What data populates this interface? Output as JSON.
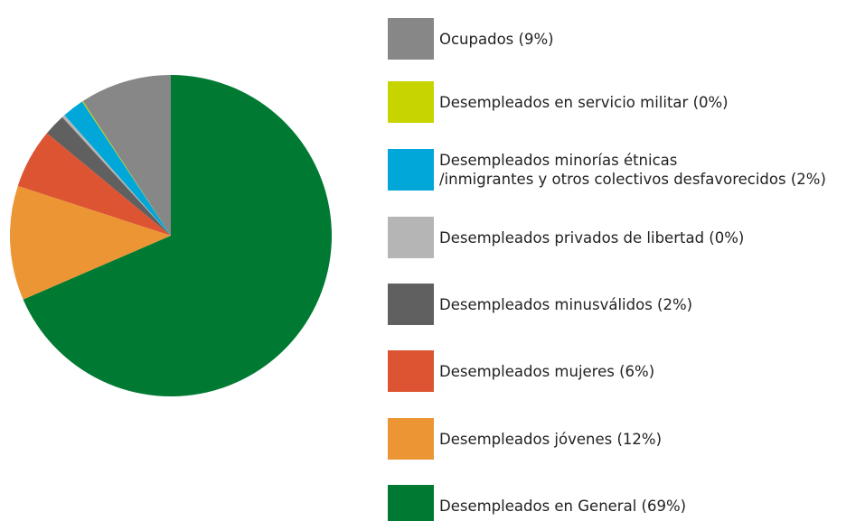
{
  "chart_data": {
    "type": "pie",
    "categories": [
      "Ocupados (9%)",
      "Desempleados en servicio militar (0%)",
      "Desempleados minorías étnicas\n/inmigrantes y otros colectivos desfavorecidos (2%)",
      "Desempleados privados de libertad (0%)",
      "Desempleados minusválidos (2%)",
      "Desempleados mujeres (6%)",
      "Desempleados jóvenes (12%)",
      "Desempleados en General (69%)"
    ],
    "values": [
      9.2,
      0.1,
      2.2,
      0.3,
      2.2,
      6.0,
      11.5,
      68.5
    ],
    "colors": [
      "#878787",
      "#c8d400",
      "#00a7d8",
      "#b5b5b5",
      "#606060",
      "#dd5433",
      "#ec9535",
      "#007a33"
    ],
    "direction": "counterclockwise",
    "start": "top",
    "legend": "right"
  }
}
